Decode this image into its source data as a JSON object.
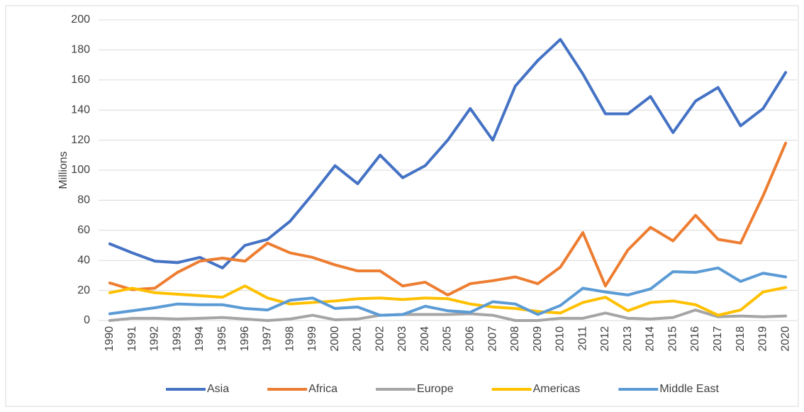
{
  "chart_data": {
    "type": "line",
    "y_label": "Millions",
    "categories": [
      "1990",
      "1991",
      "1992",
      "1993",
      "1994",
      "1995",
      "1996",
      "1997",
      "1998",
      "1999",
      "2000",
      "2001",
      "2002",
      "2003",
      "2004",
      "2005",
      "2006",
      "2007",
      "2008",
      "2009",
      "2010",
      "2011",
      "2012",
      "2013",
      "2014",
      "2015",
      "2016",
      "2017",
      "2018",
      "2019",
      "2020"
    ],
    "series": [
      {
        "name": "Asia",
        "color": "#4472c4",
        "values": [
          51,
          45,
          39.5,
          38.5,
          42,
          35,
          50,
          54,
          66,
          84,
          103,
          91,
          110,
          95,
          103,
          120,
          141,
          120,
          156,
          173,
          187,
          164,
          137.5,
          137.5,
          149,
          125,
          146,
          155,
          129.5,
          141,
          165
        ]
      },
      {
        "name": "Africa",
        "color": "#ed7d31",
        "values": [
          25,
          20.5,
          21.5,
          32,
          39.5,
          41.5,
          39.5,
          51.5,
          45,
          42,
          37,
          33,
          33,
          23,
          25.5,
          17,
          24.5,
          26.5,
          29,
          24.5,
          35.5,
          58.5,
          23,
          47,
          62,
          53,
          70,
          54,
          51.5,
          83,
          118
        ]
      },
      {
        "name": "Europe",
        "color": "#a5a5a5",
        "values": [
          0,
          1.5,
          1.5,
          1,
          1.5,
          2,
          1,
          0,
          1,
          3.5,
          0.5,
          1,
          3.5,
          4,
          4,
          4,
          4.5,
          3.5,
          0,
          0,
          1.5,
          1.5,
          5,
          1.5,
          1,
          2,
          7,
          2.5,
          3,
          2.5,
          3
        ]
      },
      {
        "name": "Americas",
        "color": "#ffc000",
        "values": [
          18.5,
          21.5,
          18.5,
          17.5,
          16.5,
          15.5,
          23,
          15,
          11,
          12,
          13,
          14.5,
          15,
          14,
          15,
          14.5,
          11,
          9,
          8,
          6,
          5,
          12,
          15.5,
          6.5,
          12,
          13,
          10.5,
          3.5,
          7,
          19,
          22
        ]
      },
      {
        "name": "Middle East",
        "color": "#5b9bd5",
        "values": [
          4.5,
          6.5,
          8.5,
          11,
          10.5,
          10.5,
          8,
          7,
          13.5,
          15,
          8,
          9,
          3.5,
          4,
          9.5,
          6.5,
          5.5,
          12.5,
          11,
          4,
          10,
          21.5,
          19,
          17,
          21,
          32.5,
          32,
          35,
          26,
          31.5,
          29
        ]
      }
    ],
    "ylim": [
      0,
      200
    ],
    "yticks": [
      0,
      20,
      40,
      60,
      80,
      100,
      120,
      140,
      160,
      180,
      200
    ],
    "grid": true,
    "legend": "bottom"
  }
}
